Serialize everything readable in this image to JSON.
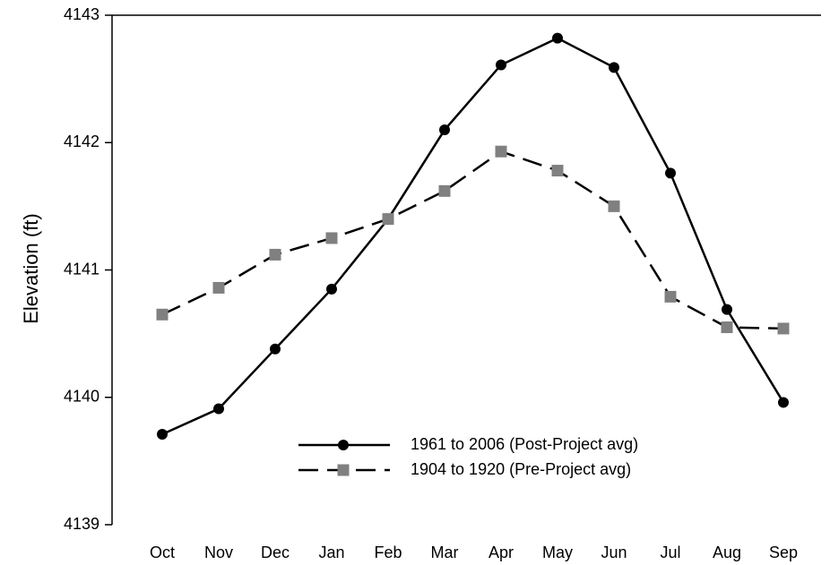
{
  "chart_data": {
    "type": "line",
    "y_label": "Elevation (ft)",
    "categories": [
      "Oct",
      "Nov",
      "Dec",
      "Jan",
      "Feb",
      "Mar",
      "Apr",
      "May",
      "Jun",
      "Jul",
      "Aug",
      "Sep"
    ],
    "series": [
      {
        "name": "1961 to 2006 (Post-Project avg)",
        "color": "#000000",
        "marker_color": "#000000",
        "marker": "circle",
        "line_style": "solid",
        "values": [
          4139.71,
          4139.91,
          4140.38,
          4140.85,
          4141.4,
          4142.1,
          4142.61,
          4142.82,
          4142.59,
          4141.76,
          4140.69,
          4139.96
        ]
      },
      {
        "name": "1904 to 1920 (Pre-Project avg)",
        "color": "#000000",
        "marker_color": "#808080",
        "marker": "square",
        "line_style": "dashed",
        "values": [
          4140.65,
          4140.86,
          4141.12,
          4141.25,
          4141.4,
          4141.62,
          4141.93,
          4141.78,
          4141.5,
          4140.79,
          4140.55,
          4140.54
        ]
      }
    ],
    "ylim": [
      4139,
      4143
    ],
    "yticks": [
      4139,
      4140,
      4141,
      4142,
      4143
    ],
    "grid": false,
    "legend": "lower center"
  }
}
